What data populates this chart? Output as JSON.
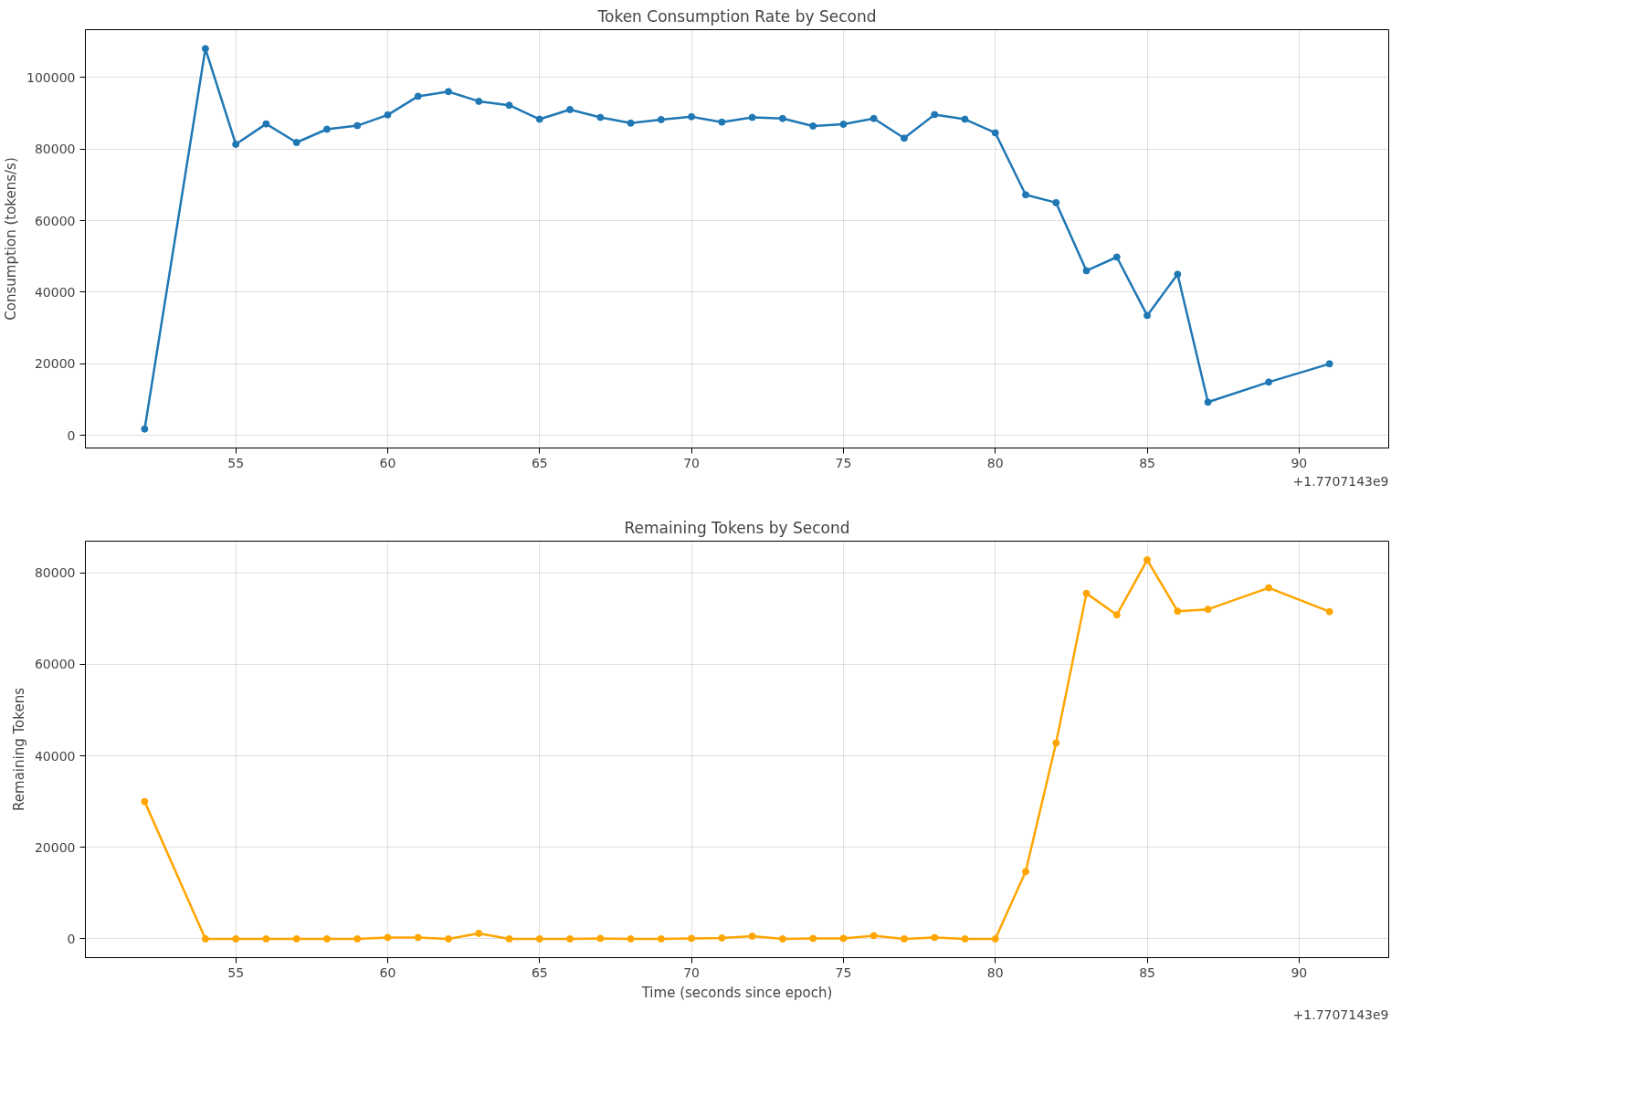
{
  "chart_data": [
    {
      "type": "line",
      "title": "Token Consumption Rate by Second",
      "ylabel": "Consumption (tokens/s)",
      "annotations": [
        "+1.7707143e9"
      ],
      "x": [
        52,
        54,
        55,
        56,
        57,
        58,
        59,
        60,
        61,
        62,
        63,
        64,
        65,
        66,
        67,
        68,
        69,
        70,
        71,
        72,
        73,
        74,
        75,
        76,
        77,
        78,
        79,
        80,
        81,
        82,
        83,
        84,
        85,
        86,
        87,
        89,
        91
      ],
      "series": [
        {
          "color": "#1f77b4",
          "values": [
            1800,
            108000,
            81300,
            87000,
            81800,
            85500,
            86500,
            89500,
            94700,
            96000,
            93300,
            92200,
            88300,
            91000,
            88800,
            87200,
            88200,
            89000,
            87500,
            88800,
            88500,
            86400,
            86900,
            88500,
            83000,
            89600,
            88300,
            84500,
            67200,
            65000,
            46000,
            49800,
            33500,
            45000,
            9300,
            14900,
            20000
          ]
        }
      ],
      "xlim": [
        50.05,
        92.95
      ],
      "xticks": [
        55,
        60,
        65,
        70,
        75,
        80,
        85,
        90
      ],
      "ylim": [
        -3500,
        113300
      ],
      "yticks": [
        0,
        20000,
        40000,
        60000,
        80000,
        100000
      ],
      "grid": true,
      "marker": "circle",
      "line_style": "solid"
    },
    {
      "type": "line",
      "title": "Remaining Tokens by Second",
      "xlabel": "Time (seconds since epoch)",
      "ylabel": "Remaining Tokens",
      "annotations": [
        "+1.7707143e9"
      ],
      "x": [
        52,
        54,
        55,
        56,
        57,
        58,
        59,
        60,
        61,
        62,
        63,
        64,
        65,
        66,
        67,
        68,
        69,
        70,
        71,
        72,
        73,
        74,
        75,
        76,
        77,
        78,
        79,
        80,
        81,
        82,
        83,
        84,
        85,
        86,
        87,
        89,
        91
      ],
      "series": [
        {
          "color": "#ffa500",
          "values": [
            30000,
            0,
            0,
            0,
            0,
            0,
            0,
            300,
            300,
            0,
            1200,
            0,
            0,
            0,
            100,
            0,
            0,
            100,
            200,
            600,
            0,
            100,
            100,
            700,
            0,
            300,
            0,
            0,
            14700,
            42800,
            75500,
            70800,
            82800,
            71600,
            72000,
            76700,
            71500
          ]
        }
      ],
      "xlim": [
        50.05,
        92.95
      ],
      "xticks": [
        55,
        60,
        65,
        70,
        75,
        80,
        85,
        90
      ],
      "ylim": [
        -4100,
        86900
      ],
      "yticks": [
        0,
        20000,
        40000,
        60000,
        80000
      ],
      "grid": true,
      "marker": "circle",
      "line_style": "solid"
    }
  ]
}
